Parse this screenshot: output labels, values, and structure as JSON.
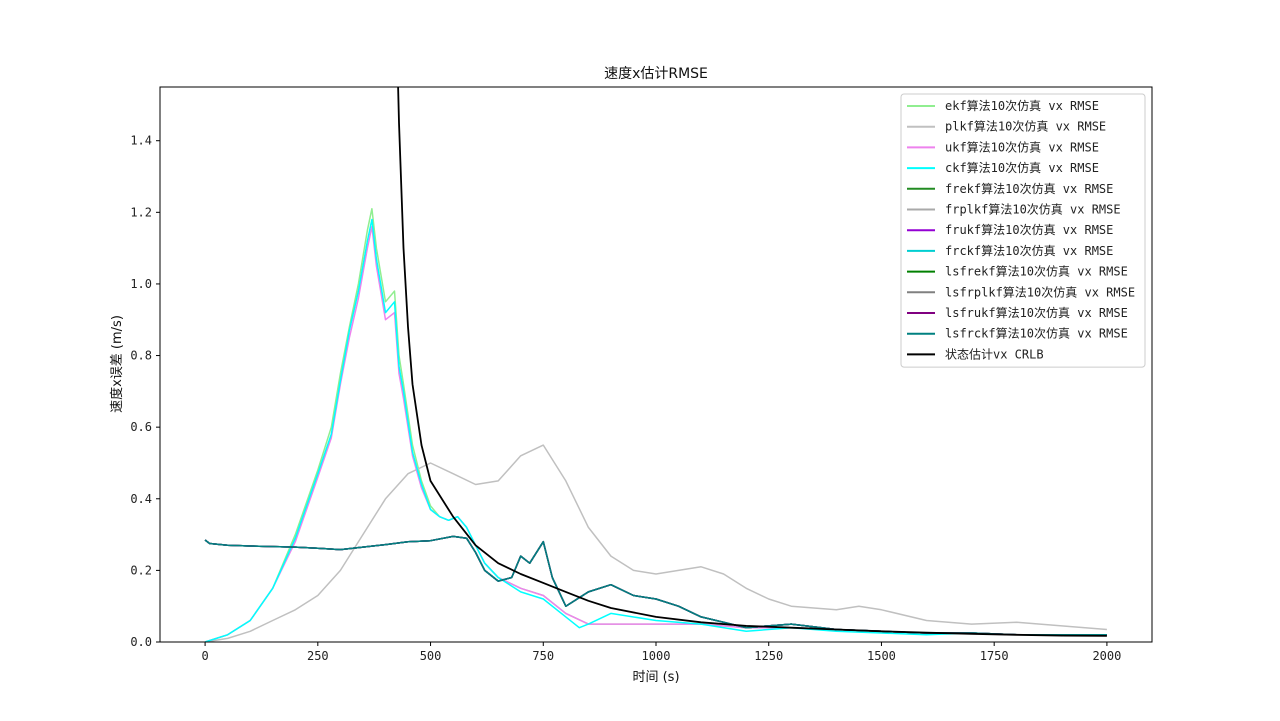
{
  "chart_data": {
    "type": "line",
    "title": "速度x估计RMSE",
    "xlabel": "时间 (s)",
    "ylabel": "速度x误差 (m/s)",
    "xlim": [
      -100,
      2100
    ],
    "ylim": [
      0,
      1.55
    ],
    "xticks": [
      0,
      250,
      500,
      750,
      1000,
      1250,
      1500,
      1750,
      2000
    ],
    "yticks": [
      0.0,
      0.2,
      0.4,
      0.6,
      0.8,
      1.0,
      1.2,
      1.4
    ],
    "grid": false,
    "legend_position": "top-right",
    "series": [
      {
        "name": "ekf算法10次仿真 vx RMSE",
        "color": "#90ee90",
        "x": [
          0,
          50,
          100,
          150,
          200,
          250,
          280,
          300,
          320,
          340,
          360,
          370,
          380,
          400,
          420,
          430,
          440,
          460,
          480,
          500,
          520,
          540,
          560,
          580,
          600,
          620,
          650,
          700,
          750,
          800,
          850,
          900,
          1000,
          1100,
          1200,
          1300,
          1400,
          1500,
          1600,
          1700,
          1800,
          1900,
          2000
        ],
        "y": [
          0.0,
          0.02,
          0.06,
          0.15,
          0.3,
          0.48,
          0.6,
          0.75,
          0.88,
          1.0,
          1.15,
          1.21,
          1.1,
          0.95,
          0.98,
          0.8,
          0.72,
          0.55,
          0.45,
          0.38,
          0.35,
          0.34,
          0.35,
          0.32,
          0.27,
          0.22,
          0.18,
          0.15,
          0.13,
          0.08,
          0.05,
          0.05,
          0.05,
          0.05,
          0.04,
          0.04,
          0.035,
          0.03,
          0.025,
          0.025,
          0.02,
          0.02,
          0.02
        ]
      },
      {
        "name": "plkf算法10次仿真 vx RMSE",
        "color": "#c0c0c0",
        "x": [
          0,
          50,
          100,
          150,
          200,
          250,
          300,
          350,
          400,
          450,
          500,
          550,
          600,
          650,
          700,
          750,
          800,
          850,
          900,
          950,
          1000,
          1050,
          1100,
          1150,
          1200,
          1250,
          1300,
          1400,
          1450,
          1500,
          1600,
          1700,
          1800,
          1900,
          2000
        ],
        "y": [
          0.0,
          0.01,
          0.03,
          0.06,
          0.09,
          0.13,
          0.2,
          0.3,
          0.4,
          0.47,
          0.5,
          0.47,
          0.44,
          0.45,
          0.52,
          0.55,
          0.45,
          0.32,
          0.24,
          0.2,
          0.19,
          0.2,
          0.21,
          0.19,
          0.15,
          0.12,
          0.1,
          0.09,
          0.1,
          0.09,
          0.06,
          0.05,
          0.055,
          0.045,
          0.035
        ]
      },
      {
        "name": "ukf算法10次仿真 vx RMSE",
        "color": "#ee82ee",
        "x": [
          0,
          50,
          100,
          150,
          200,
          250,
          280,
          300,
          320,
          340,
          360,
          370,
          380,
          400,
          420,
          430,
          440,
          460,
          480,
          500,
          520,
          540,
          560,
          580,
          600,
          620,
          650,
          700,
          750,
          800,
          850,
          900,
          1000,
          1100,
          1200,
          1300,
          1400,
          1500,
          1600,
          1700,
          1800,
          1900,
          2000
        ],
        "y": [
          0.0,
          0.02,
          0.06,
          0.15,
          0.28,
          0.46,
          0.57,
          0.72,
          0.85,
          0.96,
          1.1,
          1.16,
          1.05,
          0.9,
          0.92,
          0.75,
          0.68,
          0.52,
          0.43,
          0.37,
          0.35,
          0.34,
          0.35,
          0.32,
          0.27,
          0.22,
          0.18,
          0.15,
          0.13,
          0.08,
          0.05,
          0.05,
          0.05,
          0.05,
          0.04,
          0.04,
          0.035,
          0.03,
          0.025,
          0.025,
          0.02,
          0.02,
          0.02
        ]
      },
      {
        "name": "ckf算法10次仿真 vx RMSE",
        "color": "#00ffff",
        "x": [
          0,
          50,
          100,
          150,
          200,
          250,
          280,
          300,
          320,
          340,
          360,
          370,
          380,
          400,
          420,
          430,
          440,
          460,
          480,
          500,
          520,
          540,
          560,
          580,
          600,
          620,
          650,
          700,
          750,
          800,
          830,
          850,
          900,
          1000,
          1100,
          1200,
          1300,
          1400,
          1500,
          1600,
          1700,
          1800,
          1900,
          2000
        ],
        "y": [
          0.0,
          0.02,
          0.06,
          0.15,
          0.29,
          0.47,
          0.58,
          0.73,
          0.87,
          0.98,
          1.12,
          1.18,
          1.07,
          0.92,
          0.95,
          0.77,
          0.7,
          0.53,
          0.44,
          0.37,
          0.35,
          0.34,
          0.35,
          0.32,
          0.27,
          0.22,
          0.18,
          0.14,
          0.12,
          0.07,
          0.04,
          0.05,
          0.08,
          0.06,
          0.05,
          0.03,
          0.04,
          0.03,
          0.025,
          0.02,
          0.025,
          0.02,
          0.02,
          0.02
        ]
      },
      {
        "name": "frekf算法10次仿真 vx RMSE",
        "color": "#228b22",
        "x": [
          0,
          10,
          50,
          100,
          200,
          250,
          300,
          350,
          400,
          450,
          500,
          550,
          580,
          600,
          620,
          650,
          680,
          700,
          720,
          750,
          770,
          800,
          850,
          900,
          950,
          1000,
          1050,
          1100,
          1200,
          1300,
          1400,
          1500,
          1600,
          1700,
          1800,
          1900,
          2000
        ],
        "y": [
          0.285,
          0.275,
          0.27,
          0.268,
          0.265,
          0.262,
          0.258,
          0.265,
          0.272,
          0.28,
          0.283,
          0.295,
          0.29,
          0.25,
          0.2,
          0.17,
          0.18,
          0.24,
          0.22,
          0.28,
          0.18,
          0.1,
          0.14,
          0.16,
          0.13,
          0.12,
          0.1,
          0.07,
          0.04,
          0.05,
          0.035,
          0.03,
          0.025,
          0.025,
          0.02,
          0.02,
          0.02
        ]
      },
      {
        "name": "frplkf算法10次仿真 vx RMSE",
        "color": "#a9a9a9",
        "x": [
          0,
          10,
          50,
          100,
          200,
          250,
          300,
          350,
          400,
          450,
          500,
          550,
          580,
          600,
          620,
          650,
          680,
          700,
          720,
          750,
          770,
          800,
          850,
          900,
          950,
          1000,
          1050,
          1100,
          1200,
          1300,
          1400,
          1500,
          1600,
          1700,
          1800,
          1900,
          2000
        ],
        "y": [
          0.285,
          0.275,
          0.27,
          0.268,
          0.265,
          0.262,
          0.258,
          0.265,
          0.272,
          0.28,
          0.283,
          0.295,
          0.29,
          0.25,
          0.2,
          0.17,
          0.18,
          0.24,
          0.22,
          0.28,
          0.18,
          0.1,
          0.14,
          0.16,
          0.13,
          0.12,
          0.1,
          0.07,
          0.04,
          0.05,
          0.035,
          0.03,
          0.025,
          0.025,
          0.02,
          0.02,
          0.02
        ]
      },
      {
        "name": "frukf算法10次仿真 vx RMSE",
        "color": "#9400d3",
        "x": [
          0,
          10,
          50,
          100,
          200,
          250,
          300,
          350,
          400,
          450,
          500,
          550,
          580,
          600,
          620,
          650,
          680,
          700,
          720,
          750,
          770,
          800,
          850,
          900,
          950,
          1000,
          1050,
          1100,
          1200,
          1300,
          1400,
          1500,
          1600,
          1700,
          1800,
          1900,
          2000
        ],
        "y": [
          0.285,
          0.275,
          0.27,
          0.268,
          0.265,
          0.262,
          0.258,
          0.265,
          0.272,
          0.28,
          0.283,
          0.295,
          0.29,
          0.25,
          0.2,
          0.17,
          0.18,
          0.24,
          0.22,
          0.28,
          0.18,
          0.1,
          0.14,
          0.16,
          0.13,
          0.12,
          0.1,
          0.07,
          0.04,
          0.05,
          0.035,
          0.03,
          0.025,
          0.025,
          0.02,
          0.02,
          0.02
        ]
      },
      {
        "name": "frckf算法10次仿真 vx RMSE",
        "color": "#00ced1",
        "x": [
          0,
          10,
          50,
          100,
          200,
          250,
          300,
          350,
          400,
          450,
          500,
          550,
          580,
          600,
          620,
          650,
          680,
          700,
          720,
          750,
          770,
          800,
          850,
          900,
          950,
          1000,
          1050,
          1100,
          1200,
          1300,
          1400,
          1500,
          1600,
          1700,
          1800,
          1900,
          2000
        ],
        "y": [
          0.285,
          0.275,
          0.27,
          0.268,
          0.265,
          0.262,
          0.258,
          0.265,
          0.272,
          0.28,
          0.283,
          0.295,
          0.29,
          0.25,
          0.2,
          0.17,
          0.18,
          0.24,
          0.22,
          0.28,
          0.18,
          0.1,
          0.14,
          0.16,
          0.13,
          0.12,
          0.1,
          0.07,
          0.04,
          0.05,
          0.035,
          0.03,
          0.025,
          0.025,
          0.02,
          0.02,
          0.02
        ]
      },
      {
        "name": "lsfrekf算法10次仿真 vx RMSE",
        "color": "#008000",
        "x": [
          0,
          10,
          50,
          100,
          200,
          250,
          300,
          350,
          400,
          450,
          500,
          550,
          580,
          600,
          620,
          650,
          680,
          700,
          720,
          750,
          770,
          800,
          850,
          900,
          950,
          1000,
          1050,
          1100,
          1200,
          1300,
          1400,
          1500,
          1600,
          1700,
          1800,
          1900,
          2000
        ],
        "y": [
          0.285,
          0.275,
          0.27,
          0.268,
          0.265,
          0.262,
          0.258,
          0.265,
          0.272,
          0.28,
          0.283,
          0.295,
          0.29,
          0.25,
          0.2,
          0.17,
          0.18,
          0.24,
          0.22,
          0.28,
          0.18,
          0.1,
          0.14,
          0.16,
          0.13,
          0.12,
          0.1,
          0.07,
          0.04,
          0.05,
          0.035,
          0.03,
          0.025,
          0.025,
          0.02,
          0.02,
          0.02
        ]
      },
      {
        "name": "lsfrplkf算法10次仿真 vx RMSE",
        "color": "#808080",
        "x": [
          0,
          10,
          50,
          100,
          200,
          250,
          300,
          350,
          400,
          450,
          500,
          550,
          580,
          600,
          620,
          650,
          680,
          700,
          720,
          750,
          770,
          800,
          850,
          900,
          950,
          1000,
          1050,
          1100,
          1200,
          1300,
          1400,
          1500,
          1600,
          1700,
          1800,
          1900,
          2000
        ],
        "y": [
          0.285,
          0.275,
          0.27,
          0.268,
          0.265,
          0.262,
          0.258,
          0.265,
          0.272,
          0.28,
          0.283,
          0.295,
          0.29,
          0.25,
          0.2,
          0.17,
          0.18,
          0.24,
          0.22,
          0.28,
          0.18,
          0.1,
          0.14,
          0.16,
          0.13,
          0.12,
          0.1,
          0.07,
          0.04,
          0.05,
          0.035,
          0.03,
          0.025,
          0.025,
          0.02,
          0.02,
          0.02
        ]
      },
      {
        "name": "lsfrukf算法10次仿真 vx RMSE",
        "color": "#800080",
        "x": [
          0,
          10,
          50,
          100,
          200,
          250,
          300,
          350,
          400,
          450,
          500,
          550,
          580,
          600,
          620,
          650,
          680,
          700,
          720,
          750,
          770,
          800,
          850,
          900,
          950,
          1000,
          1050,
          1100,
          1200,
          1300,
          1400,
          1500,
          1600,
          1700,
          1800,
          1900,
          2000
        ],
        "y": [
          0.285,
          0.275,
          0.27,
          0.268,
          0.265,
          0.262,
          0.258,
          0.265,
          0.272,
          0.28,
          0.283,
          0.295,
          0.29,
          0.25,
          0.2,
          0.17,
          0.18,
          0.24,
          0.22,
          0.28,
          0.18,
          0.1,
          0.14,
          0.16,
          0.13,
          0.12,
          0.1,
          0.07,
          0.04,
          0.05,
          0.035,
          0.03,
          0.025,
          0.025,
          0.02,
          0.02,
          0.02
        ]
      },
      {
        "name": "lsfrckf算法10次仿真 vx RMSE",
        "color": "#008080",
        "x": [
          0,
          10,
          50,
          100,
          200,
          250,
          300,
          350,
          400,
          450,
          500,
          550,
          580,
          600,
          620,
          650,
          680,
          700,
          720,
          750,
          770,
          800,
          850,
          900,
          950,
          1000,
          1050,
          1100,
          1200,
          1300,
          1400,
          1500,
          1600,
          1700,
          1800,
          1900,
          2000
        ],
        "y": [
          0.285,
          0.275,
          0.27,
          0.268,
          0.265,
          0.262,
          0.258,
          0.265,
          0.272,
          0.28,
          0.283,
          0.295,
          0.29,
          0.25,
          0.2,
          0.17,
          0.18,
          0.24,
          0.22,
          0.28,
          0.18,
          0.1,
          0.14,
          0.16,
          0.13,
          0.12,
          0.1,
          0.07,
          0.04,
          0.05,
          0.035,
          0.03,
          0.025,
          0.025,
          0.02,
          0.02,
          0.02
        ]
      },
      {
        "name": "状态估计vx CRLB",
        "color": "#000000",
        "x": [
          428,
          430,
          440,
          450,
          460,
          480,
          500,
          550,
          600,
          650,
          700,
          750,
          800,
          850,
          900,
          1000,
          1100,
          1200,
          1300,
          1400,
          1500,
          1600,
          1700,
          1800,
          1900,
          2000
        ],
        "y": [
          1.55,
          1.45,
          1.1,
          0.88,
          0.72,
          0.55,
          0.45,
          0.35,
          0.27,
          0.22,
          0.19,
          0.165,
          0.14,
          0.115,
          0.095,
          0.07,
          0.055,
          0.045,
          0.04,
          0.035,
          0.03,
          0.026,
          0.023,
          0.02,
          0.018,
          0.017
        ]
      }
    ]
  }
}
